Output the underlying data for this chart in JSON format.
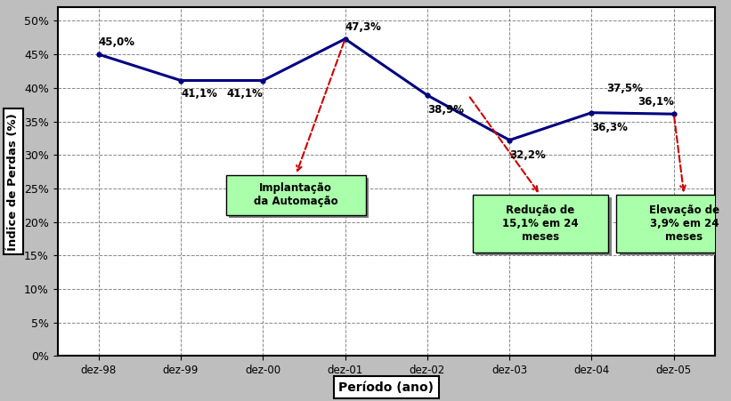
{
  "x_labels": [
    "dez-98",
    "dez-99",
    "dez-00",
    "dez-01",
    "dez-02",
    "dez-03",
    "dez-04",
    "dez-05"
  ],
  "y_values": [
    45.0,
    41.1,
    41.1,
    47.3,
    38.9,
    32.2,
    36.3,
    36.1
  ],
  "line_color": "#000080",
  "arrow_color": "#CC0000",
  "box_fill": "#AAFFAA",
  "box_shadow": "#808080",
  "bg_color": "#BEBEBE",
  "plot_bg": "#FFFFFF",
  "ylabel": "Índice de Perdas (%)",
  "xlabel": "Período (ano)",
  "yticks": [
    0,
    5,
    10,
    15,
    20,
    25,
    30,
    35,
    40,
    45,
    50
  ],
  "ytick_labels": [
    "0%",
    "5%",
    "10%",
    "15%",
    "20%",
    "25%",
    "30%",
    "35%",
    "40%",
    "45%",
    "50%"
  ],
  "point_labels": [
    "45,0%",
    "41,1%",
    "41,1%",
    "47,3%",
    "38,9%",
    "32,2%",
    "36,3%",
    "36,1%"
  ],
  "extra_label": "37,5%",
  "ann1_text": "Implantação\nda Automação",
  "ann2_text": "Redução de\n15,1% em 24\nmeses",
  "ann3_text": "Elevação de\n3,9% em 24\nmeses"
}
